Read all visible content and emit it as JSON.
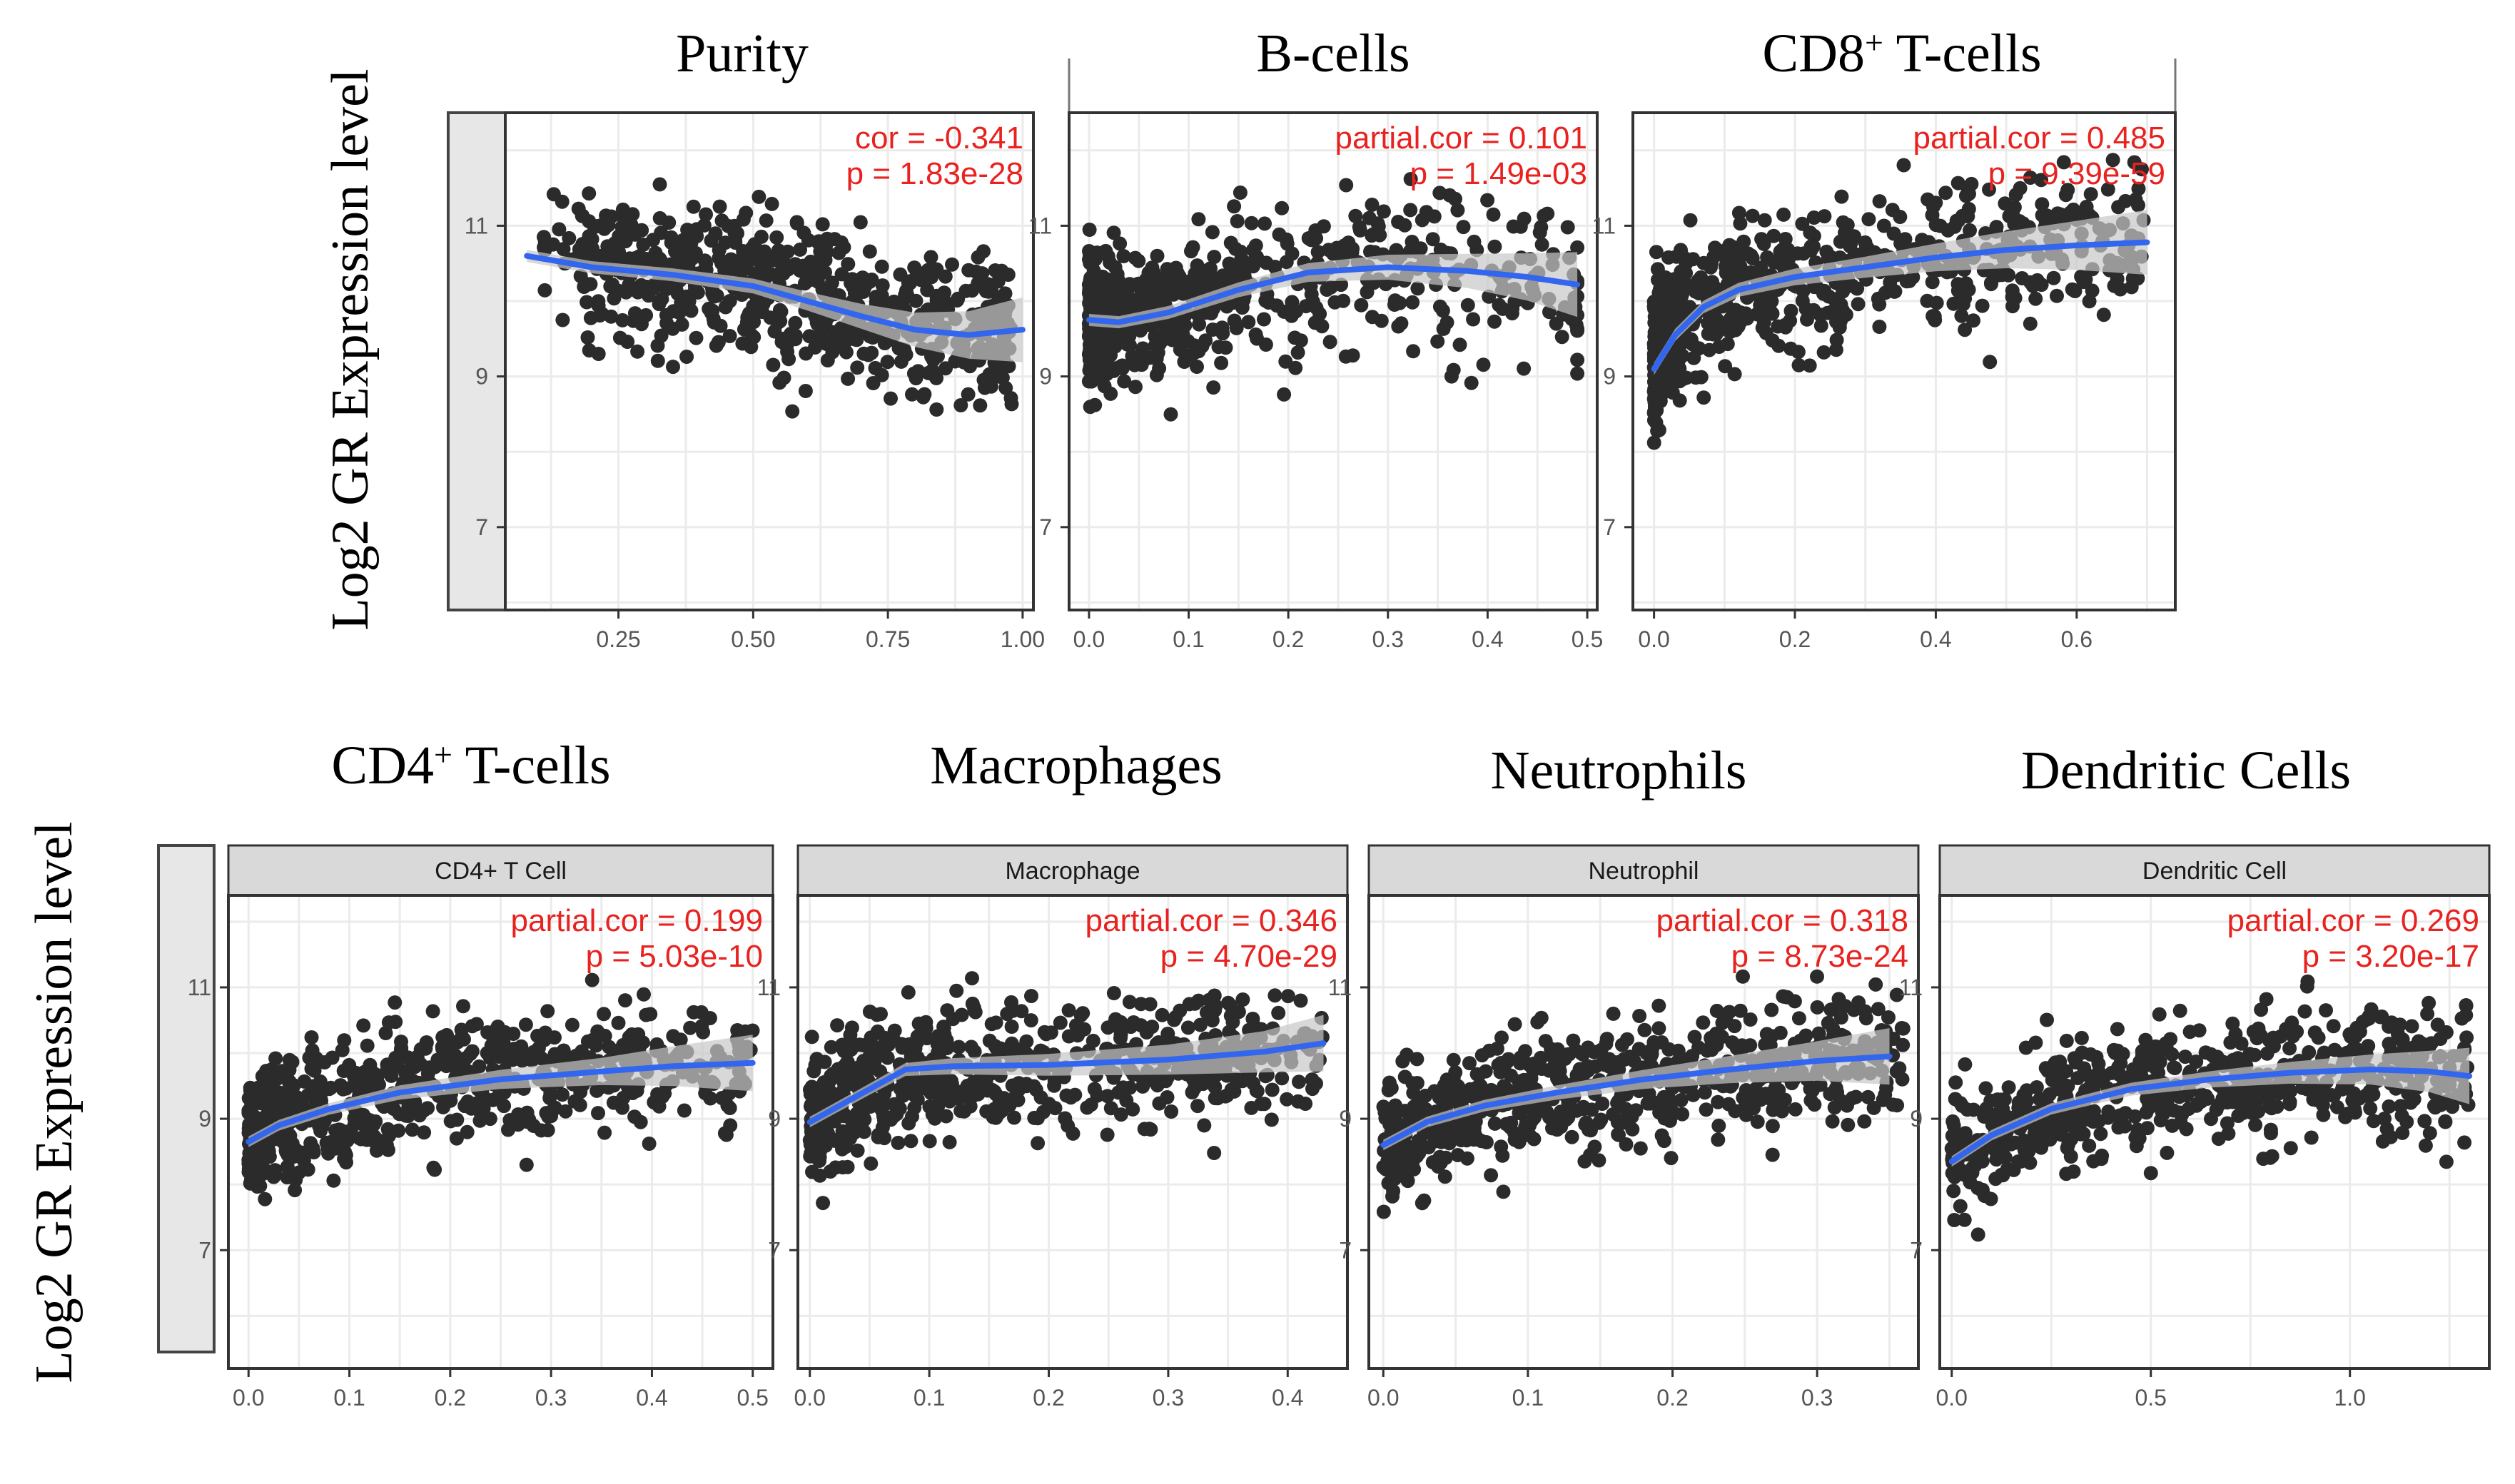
{
  "figure": {
    "ylabel_top": "Log2 GR Expression level",
    "ylabel_bottom": "Log2 GR Expression level"
  },
  "colors": {
    "point": "#2b2b2b",
    "smooth": "#3366ee",
    "band": "#c7c7c7",
    "stat": "#e8221f",
    "grid": "#ebebeb",
    "strip_fill": "#d9d9d9",
    "tick_label": "#555555"
  },
  "chart_data": [
    {
      "type": "scatter",
      "id": "purity",
      "title": "Purity",
      "title_sup": "",
      "title_rest": "",
      "strip": "",
      "stat_label": "cor = -0.341",
      "p_label": "p = 1.83e-28",
      "xlim": [
        0.04,
        1.02
      ],
      "ylim": [
        5.9,
        12.5
      ],
      "xticks": [
        0.25,
        0.5,
        0.75,
        1.0
      ],
      "xtick_labels": [
        "0.25",
        "0.50",
        "0.75",
        "1.00"
      ],
      "yticks": [
        7,
        9,
        11
      ],
      "ytick_labels": [
        "7",
        "9",
        "11"
      ],
      "smooth": {
        "x": [
          0.08,
          0.2,
          0.35,
          0.5,
          0.6,
          0.7,
          0.8,
          0.9,
          1.0
        ],
        "y": [
          10.6,
          10.45,
          10.35,
          10.2,
          10.0,
          9.8,
          9.62,
          9.55,
          9.62
        ]
      }
    },
    {
      "type": "scatter",
      "id": "bcells",
      "title": "B-cells",
      "title_sup": "",
      "title_rest": "",
      "strip": "",
      "stat_label": "partial.cor = 0.101",
      "p_label": "p = 1.49e-03",
      "xlim": [
        -0.02,
        0.51
      ],
      "ylim": [
        5.9,
        12.5
      ],
      "xticks": [
        0.0,
        0.1,
        0.2,
        0.3,
        0.4,
        0.5
      ],
      "xtick_labels": [
        "0.0",
        "0.1",
        "0.2",
        "0.3",
        "0.4",
        "0.5"
      ],
      "yticks": [
        7,
        9,
        11
      ],
      "ytick_labels": [
        "7",
        "9",
        "11"
      ],
      "smooth": {
        "x": [
          0.0,
          0.03,
          0.08,
          0.15,
          0.22,
          0.3,
          0.38,
          0.44,
          0.49
        ],
        "y": [
          9.75,
          9.72,
          9.85,
          10.15,
          10.38,
          10.45,
          10.4,
          10.32,
          10.22
        ]
      }
    },
    {
      "type": "scatter",
      "id": "cd8",
      "title": "CD8",
      "title_sup": "+",
      "title_rest": " T-cells",
      "strip": "",
      "stat_label": "partial.cor = 0.485",
      "p_label": "p = 9.39e-59",
      "xlim": [
        -0.03,
        0.74
      ],
      "ylim": [
        5.9,
        12.5
      ],
      "xticks": [
        0.0,
        0.2,
        0.4,
        0.6
      ],
      "xtick_labels": [
        "0.0",
        "0.2",
        "0.4",
        "0.6"
      ],
      "yticks": [
        7,
        9,
        11
      ],
      "ytick_labels": [
        "7",
        "9",
        "11"
      ],
      "smooth": {
        "x": [
          0.0,
          0.03,
          0.07,
          0.12,
          0.2,
          0.3,
          0.4,
          0.5,
          0.6,
          0.7
        ],
        "y": [
          9.1,
          9.55,
          9.92,
          10.15,
          10.32,
          10.45,
          10.58,
          10.68,
          10.74,
          10.78
        ]
      }
    },
    {
      "type": "scatter",
      "id": "cd4",
      "title": "CD4",
      "title_sup": "+",
      "title_rest": " T-cells",
      "strip": "CD4+ T Cell",
      "stat_label": "partial.cor = 0.199",
      "p_label": "p = 5.03e-10",
      "xlim": [
        -0.02,
        0.52
      ],
      "ylim": [
        5.2,
        12.4
      ],
      "xticks": [
        0.0,
        0.1,
        0.2,
        0.3,
        0.4,
        0.5
      ],
      "xtick_labels": [
        "0.0",
        "0.1",
        "0.2",
        "0.3",
        "0.4",
        "0.5"
      ],
      "yticks": [
        7,
        9,
        11
      ],
      "ytick_labels": [
        "7",
        "9",
        "11"
      ],
      "smooth": {
        "x": [
          0.0,
          0.03,
          0.08,
          0.15,
          0.25,
          0.35,
          0.42,
          0.5
        ],
        "y": [
          8.65,
          8.9,
          9.15,
          9.4,
          9.6,
          9.72,
          9.8,
          9.85
        ]
      }
    },
    {
      "type": "scatter",
      "id": "macro",
      "title": "Macrophages",
      "title_sup": "",
      "title_rest": "",
      "strip": "Macrophage",
      "stat_label": "partial.cor = 0.346",
      "p_label": "p = 4.70e-29",
      "xlim": [
        -0.01,
        0.45
      ],
      "ylim": [
        5.2,
        12.4
      ],
      "xticks": [
        0.0,
        0.1,
        0.2,
        0.3,
        0.4
      ],
      "xtick_labels": [
        "0.0",
        "0.1",
        "0.2",
        "0.3",
        "0.4"
      ],
      "yticks": [
        7,
        9,
        11
      ],
      "ytick_labels": [
        "7",
        "9",
        "11"
      ],
      "smooth": {
        "x": [
          0.0,
          0.02,
          0.05,
          0.08,
          0.12,
          0.2,
          0.3,
          0.38,
          0.43
        ],
        "y": [
          8.95,
          9.15,
          9.45,
          9.75,
          9.8,
          9.82,
          9.9,
          10.02,
          10.15
        ]
      }
    },
    {
      "type": "scatter",
      "id": "neutro",
      "title": "Neutrophils",
      "title_sup": "",
      "title_rest": "",
      "strip": "Neutrophil",
      "stat_label": "partial.cor = 0.318",
      "p_label": "p = 8.73e-24",
      "xlim": [
        -0.01,
        0.37
      ],
      "ylim": [
        5.2,
        12.4
      ],
      "xticks": [
        0.0,
        0.1,
        0.2,
        0.3
      ],
      "xtick_labels": [
        "0.0",
        "0.1",
        "0.2",
        "0.3"
      ],
      "yticks": [
        7,
        9,
        11
      ],
      "ytick_labels": [
        "7",
        "9",
        "11"
      ],
      "smooth": {
        "x": [
          0.0,
          0.03,
          0.07,
          0.12,
          0.18,
          0.24,
          0.3,
          0.35
        ],
        "y": [
          8.6,
          8.95,
          9.2,
          9.4,
          9.6,
          9.75,
          9.88,
          9.95
        ]
      }
    },
    {
      "type": "scatter",
      "id": "dc",
      "title": "Dendritic Cells",
      "title_sup": "",
      "title_rest": "",
      "strip": "Dendritic Cell",
      "stat_label": "partial.cor = 0.269",
      "p_label": "p = 3.20e-17",
      "xlim": [
        -0.03,
        1.35
      ],
      "ylim": [
        5.2,
        12.4
      ],
      "xticks": [
        0.0,
        0.5,
        1.0
      ],
      "xtick_labels": [
        "0.0",
        "0.5",
        "1.0"
      ],
      "yticks": [
        7,
        9,
        11
      ],
      "ytick_labels": [
        "7",
        "9",
        "11"
      ],
      "smooth": {
        "x": [
          0.0,
          0.1,
          0.25,
          0.45,
          0.65,
          0.85,
          1.05,
          1.2,
          1.3
        ],
        "y": [
          8.35,
          8.75,
          9.15,
          9.45,
          9.6,
          9.7,
          9.75,
          9.72,
          9.65
        ]
      }
    }
  ]
}
